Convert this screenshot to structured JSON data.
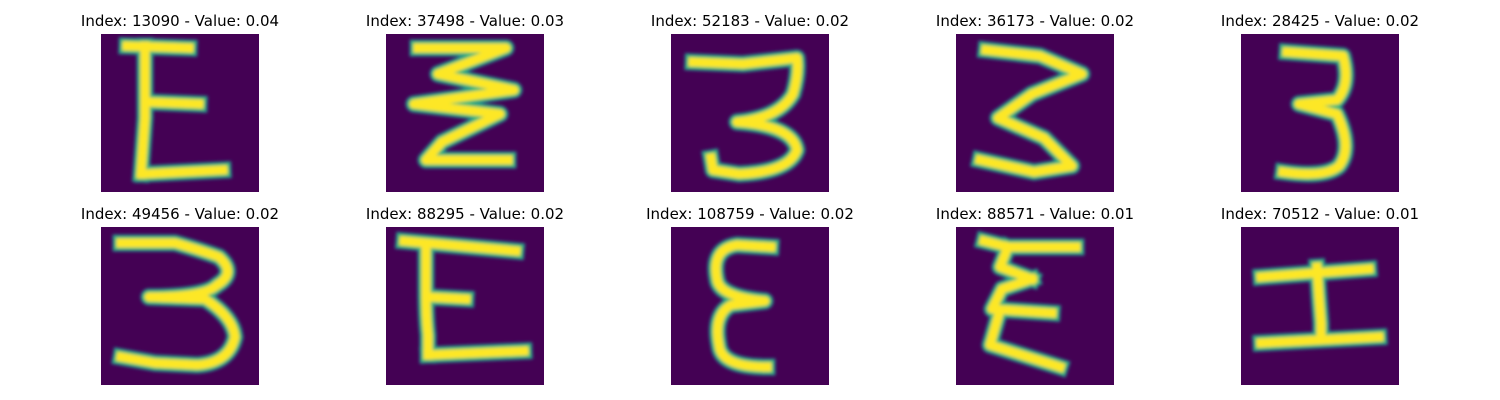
{
  "colors": {
    "background": "#440154",
    "stroke_core": "#fde725",
    "stroke_edge": "#35b779",
    "stroke_halo": "#26828e"
  },
  "panels": [
    {
      "title": "Index: 13090 - Value: 0.04",
      "glyph": "E-shape-icon",
      "paths": [
        "M26,12 L88,14",
        "M44,12 L44,84 L40,140",
        "M46,68 L98,70",
        "M42,140 L122,136"
      ]
    },
    {
      "title": "Index: 37498 - Value: 0.03",
      "glyph": "zigzag-three-icon",
      "paths": [
        "M32,14 L120,14 L52,40 L128,56 L28,70 L114,80 L56,108 L40,126 L122,126"
      ]
    },
    {
      "title": "Index: 52183 - Value: 0.02",
      "glyph": "three-icon",
      "paths": [
        "M22,28 L72,30 L126,24 Q128,40 122,60 Q108,84 66,88 Q122,92 126,116 Q118,138 68,140 L42,136 L40,124"
      ]
    },
    {
      "title": "Index: 36173 - Value: 0.02",
      "glyph": "three-icon",
      "paths": [
        "M30,16 L84,22 L126,40 L76,60 L42,84 L88,104 L116,132 L78,138 L24,126"
      ]
    },
    {
      "title": "Index: 28425 - Value: 0.02",
      "glyph": "three-icon",
      "paths": [
        "M46,18 L102,22 Q110,50 96,66 L58,70 L96,80 Q112,114 98,132 Q84,144 42,138"
      ]
    },
    {
      "title": "Index: 49456 - Value: 0.02",
      "glyph": "three-icon",
      "paths": [
        "M20,16 L74,16 Q102,24 118,30 Q136,46 116,58 Q104,70 48,70 L104,72 Q132,90 134,110 Q128,136 96,138 L54,136 L20,130"
      ]
    },
    {
      "title": "Index: 88295 - Value: 0.02",
      "glyph": "E-shape-icon",
      "paths": [
        "M18,14 L130,24",
        "M40,20 L40,64 Q40,90 42,108 L42,128",
        "M42,70 L80,72",
        "M42,128 L138,124"
      ]
    },
    {
      "title": "Index: 108759 - Value: 0.02",
      "glyph": "E-shape-icon",
      "paths": [
        "M100,20 L66,18 Q40,22 46,52 Q48,70 94,74 L60,78 Q42,88 48,118 Q50,140 96,140"
      ]
    },
    {
      "title": "Index: 88571 - Value: 0.01",
      "glyph": "zigzag-E-icon",
      "paths": [
        "M28,14 L52,20 L120,20",
        "M52,20 L44,40 L76,52",
        "M76,52 L46,62 L36,82 L96,86",
        "M42,90 L34,118 L104,140"
      ]
    },
    {
      "title": "Index: 70512 - Value: 0.01",
      "glyph": "I-shape-icon",
      "paths": [
        "M20,50 L128,42",
        "M76,40 L78,70 L80,96 L80,112",
        "M20,116 L138,110"
      ]
    }
  ]
}
